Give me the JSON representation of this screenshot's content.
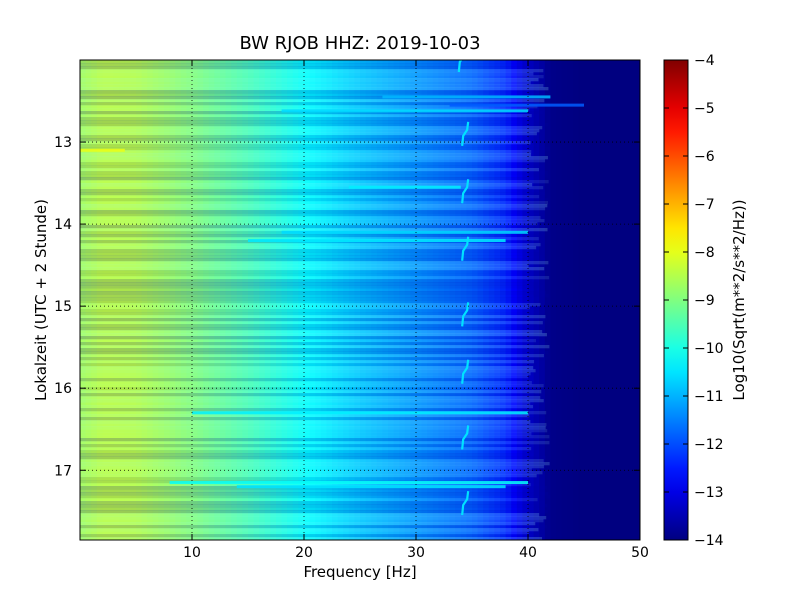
{
  "chart_data": {
    "type": "heatmap",
    "title": "BW RJOB HHZ: 2019-10-03",
    "xlabel": "Frequency [Hz]",
    "ylabel": "Lokalzeit (UTC + 2 Stunde)",
    "xlim": [
      0,
      50
    ],
    "ylim": [
      12.0,
      17.85
    ],
    "y_inverted": true,
    "x_ticks": [
      10,
      20,
      30,
      40,
      50
    ],
    "x_tick_labels": [
      "10",
      "20",
      "30",
      "40",
      "50"
    ],
    "y_ticks": [
      13,
      14,
      15,
      16,
      17
    ],
    "y_tick_labels": [
      "13",
      "14",
      "15",
      "16",
      "17"
    ],
    "grid": true,
    "colormap": "jet",
    "colorbar": {
      "label": "Log10(Sqrt(m**2/s**2/Hz))",
      "range": [
        -14,
        -4
      ],
      "ticks": [
        -4,
        -5,
        -6,
        -7,
        -8,
        -9,
        -10,
        -11,
        -12,
        -13,
        -14
      ],
      "tick_labels": [
        "−4",
        "−5",
        "−6",
        "−7",
        "−8",
        "−9",
        "−10",
        "−11",
        "−12",
        "−13",
        "−14"
      ]
    },
    "spectral_profile": {
      "frequency_hz": [
        0,
        2,
        5,
        10,
        15,
        20,
        25,
        30,
        35,
        38,
        40,
        42,
        45,
        50
      ],
      "log_level": [
        -8.6,
        -8.35,
        -8.4,
        -8.9,
        -9.5,
        -10.2,
        -10.8,
        -11.3,
        -11.8,
        -12.4,
        -13.3,
        -13.9,
        -14,
        -14
      ]
    },
    "horizontal_streaks": [
      {
        "time": 12.45,
        "from_hz": 27,
        "to_hz": 42,
        "delta": 0.8
      },
      {
        "time": 12.55,
        "from_hz": 33,
        "to_hz": 45,
        "delta": 1.0
      },
      {
        "time": 12.62,
        "from_hz": 18,
        "to_hz": 40,
        "delta": 0.6
      },
      {
        "time": 13.1,
        "from_hz": 0,
        "to_hz": 4,
        "delta": 0.4
      },
      {
        "time": 13.55,
        "from_hz": 24,
        "to_hz": 34,
        "delta": 0.8
      },
      {
        "time": 14.1,
        "from_hz": 18,
        "to_hz": 40,
        "delta": 0.6
      },
      {
        "time": 14.2,
        "from_hz": 15,
        "to_hz": 38,
        "delta": 0.5
      },
      {
        "time": 16.3,
        "from_hz": 10,
        "to_hz": 40,
        "delta": 0.4
      },
      {
        "time": 17.15,
        "from_hz": 8,
        "to_hz": 40,
        "delta": 0.5
      },
      {
        "time": 17.2,
        "from_hz": 14,
        "to_hz": 38,
        "delta": 0.4
      }
    ],
    "transients": [
      {
        "time": 12.0,
        "hz": 34.0
      },
      {
        "time": 12.9,
        "hz": 34.3
      },
      {
        "time": 13.6,
        "hz": 34.3
      },
      {
        "time": 14.3,
        "hz": 34.3
      },
      {
        "time": 15.1,
        "hz": 34.3
      },
      {
        "time": 15.8,
        "hz": 34.3
      },
      {
        "time": 16.6,
        "hz": 34.3
      },
      {
        "time": 17.4,
        "hz": 34.3
      }
    ]
  }
}
